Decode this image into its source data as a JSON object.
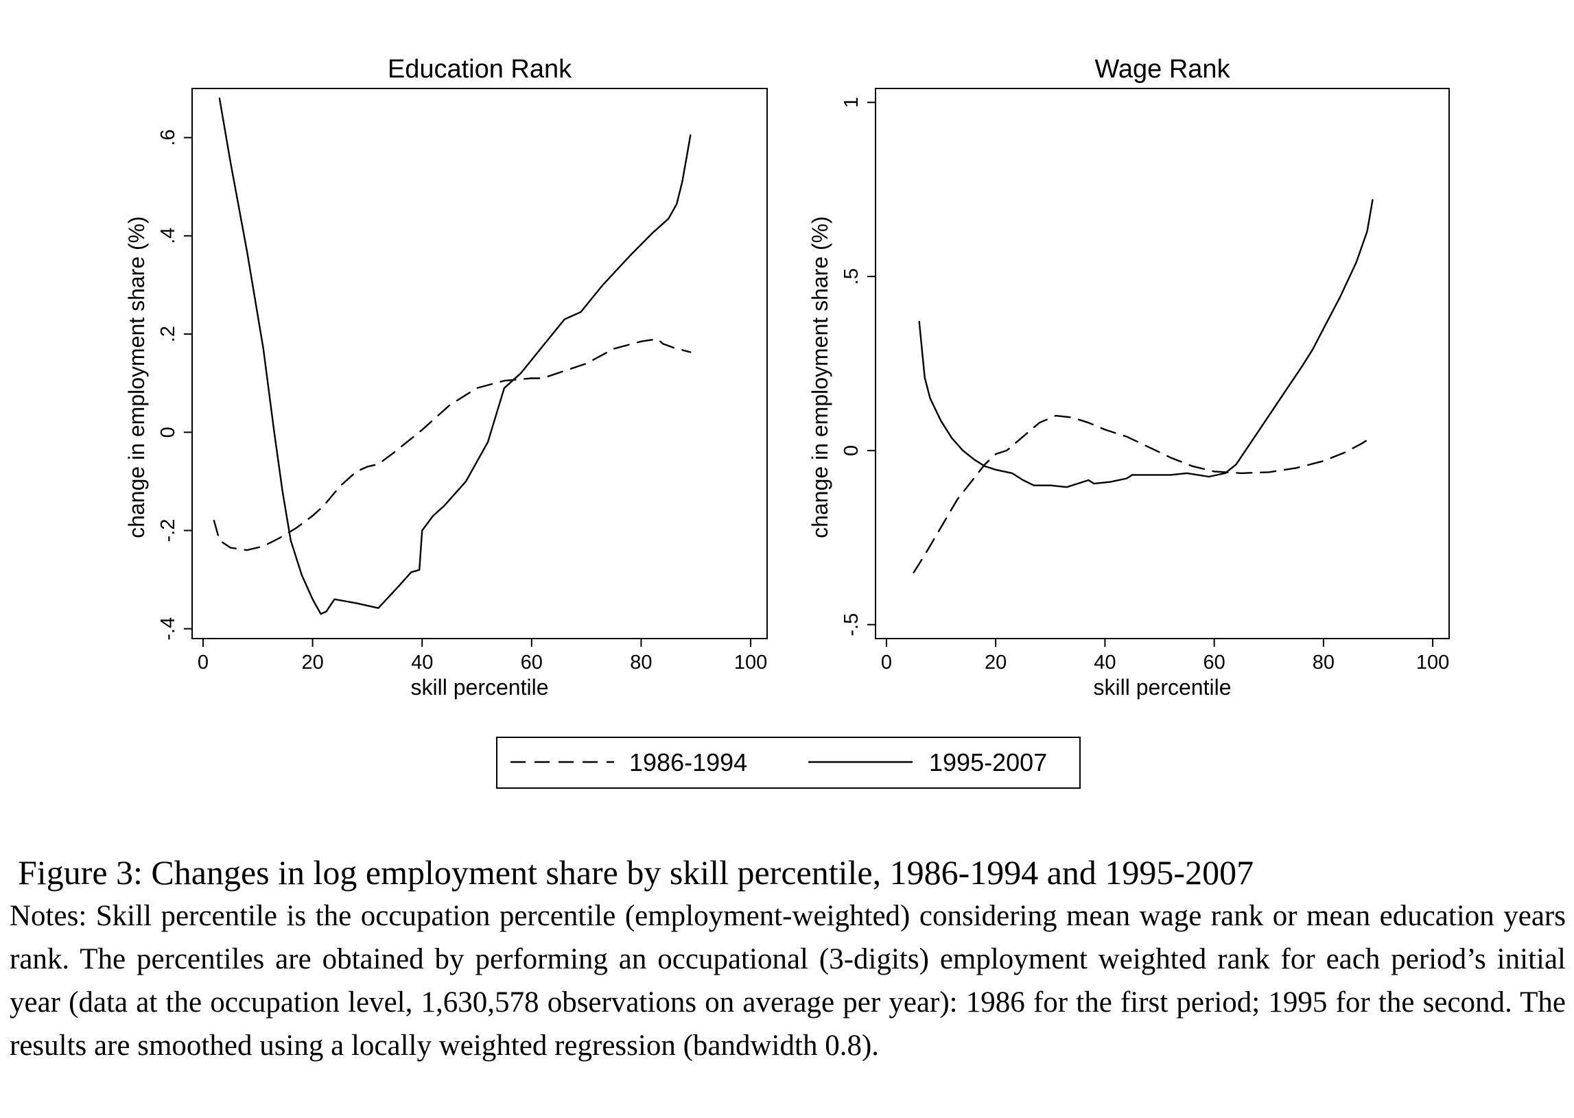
{
  "chart_data": [
    {
      "type": "line",
      "title": "Education Rank",
      "xlabel": "skill percentile",
      "ylabel": "change in employment share (%)",
      "xlim": [
        -2,
        103
      ],
      "ylim": [
        -0.42,
        0.7
      ],
      "xticks": [
        0,
        20,
        40,
        60,
        80,
        100
      ],
      "xtick_labels": [
        "0",
        "20",
        "40",
        "60",
        "80",
        "100"
      ],
      "yticks": [
        -0.4,
        -0.2,
        0,
        0.2,
        0.4,
        0.6
      ],
      "ytick_labels": [
        "-.4",
        "-.2",
        "0",
        ".2",
        ".4",
        ".6"
      ],
      "grid": false,
      "series": [
        {
          "name": "1986-1994",
          "dash": "dashed",
          "points": [
            [
              2,
              -0.18
            ],
            [
              3,
              -0.22
            ],
            [
              5,
              -0.235
            ],
            [
              8,
              -0.24
            ],
            [
              11,
              -0.232
            ],
            [
              14,
              -0.215
            ],
            [
              17,
              -0.195
            ],
            [
              20,
              -0.17
            ],
            [
              22,
              -0.15
            ],
            [
              25,
              -0.11
            ],
            [
              28,
              -0.08
            ],
            [
              30,
              -0.07
            ],
            [
              32,
              -0.065
            ],
            [
              35,
              -0.04
            ],
            [
              40,
              0.005
            ],
            [
              45,
              0.055
            ],
            [
              50,
              0.09
            ],
            [
              55,
              0.105
            ],
            [
              60,
              0.11
            ],
            [
              62,
              0.11
            ],
            [
              66,
              0.125
            ],
            [
              70,
              0.14
            ],
            [
              75,
              0.17
            ],
            [
              80,
              0.185
            ],
            [
              83,
              0.19
            ],
            [
              84,
              0.18
            ],
            [
              86,
              0.172
            ],
            [
              89,
              0.163
            ]
          ]
        },
        {
          "name": "1995-2007",
          "dash": "solid",
          "points": [
            [
              3,
              0.68
            ],
            [
              5,
              0.55
            ],
            [
              8,
              0.37
            ],
            [
              11,
              0.17
            ],
            [
              13,
              0.0
            ],
            [
              14.5,
              -0.12
            ],
            [
              16,
              -0.22
            ],
            [
              18,
              -0.29
            ],
            [
              20,
              -0.34
            ],
            [
              21.5,
              -0.37
            ],
            [
              22.5,
              -0.365
            ],
            [
              24,
              -0.34
            ],
            [
              28,
              -0.348
            ],
            [
              32,
              -0.358
            ],
            [
              36,
              -0.31
            ],
            [
              38,
              -0.285
            ],
            [
              39.5,
              -0.28
            ],
            [
              40,
              -0.2
            ],
            [
              42,
              -0.17
            ],
            [
              44,
              -0.15
            ],
            [
              48,
              -0.1
            ],
            [
              52,
              -0.02
            ],
            [
              55,
              0.09
            ],
            [
              58,
              0.12
            ],
            [
              62,
              0.175
            ],
            [
              66,
              0.23
            ],
            [
              69,
              0.245
            ],
            [
              73,
              0.3
            ],
            [
              78,
              0.36
            ],
            [
              82,
              0.405
            ],
            [
              85,
              0.435
            ],
            [
              86.5,
              0.465
            ],
            [
              87.5,
              0.51
            ],
            [
              88.3,
              0.56
            ],
            [
              89,
              0.605
            ]
          ]
        }
      ]
    },
    {
      "type": "line",
      "title": "Wage Rank",
      "xlabel": "skill percentile",
      "ylabel": "change in employment share (%)",
      "xlim": [
        -2,
        103
      ],
      "ylim": [
        -0.54,
        1.04
      ],
      "xticks": [
        0,
        20,
        40,
        60,
        80,
        100
      ],
      "xtick_labels": [
        "0",
        "20",
        "40",
        "60",
        "80",
        "100"
      ],
      "yticks": [
        -0.5,
        0,
        0.5,
        1
      ],
      "ytick_labels": [
        "-.5",
        "0",
        ".5",
        "1"
      ],
      "grid": false,
      "series": [
        {
          "name": "1986-1994",
          "dash": "dashed",
          "points": [
            [
              5,
              -0.35
            ],
            [
              7,
              -0.3
            ],
            [
              10,
              -0.22
            ],
            [
              13,
              -0.14
            ],
            [
              16,
              -0.08
            ],
            [
              18,
              -0.04
            ],
            [
              20,
              -0.01
            ],
            [
              22,
              0.0
            ],
            [
              25,
              0.04
            ],
            [
              28,
              0.08
            ],
            [
              31,
              0.1
            ],
            [
              34,
              0.095
            ],
            [
              37,
              0.08
            ],
            [
              40,
              0.06
            ],
            [
              44,
              0.04
            ],
            [
              48,
              0.01
            ],
            [
              52,
              -0.02
            ],
            [
              56,
              -0.045
            ],
            [
              60,
              -0.06
            ],
            [
              65,
              -0.065
            ],
            [
              70,
              -0.062
            ],
            [
              75,
              -0.05
            ],
            [
              80,
              -0.03
            ],
            [
              84,
              -0.005
            ],
            [
              87,
              0.02
            ],
            [
              89,
              0.04
            ]
          ]
        },
        {
          "name": "1995-2007",
          "dash": "solid",
          "points": [
            [
              6,
              0.37
            ],
            [
              7,
              0.21
            ],
            [
              8,
              0.15
            ],
            [
              10,
              0.085
            ],
            [
              12,
              0.035
            ],
            [
              14,
              0.0
            ],
            [
              16,
              -0.025
            ],
            [
              18,
              -0.045
            ],
            [
              20,
              -0.055
            ],
            [
              23,
              -0.065
            ],
            [
              25,
              -0.085
            ],
            [
              27,
              -0.1
            ],
            [
              30,
              -0.1
            ],
            [
              33,
              -0.105
            ],
            [
              35,
              -0.095
            ],
            [
              37,
              -0.085
            ],
            [
              38,
              -0.095
            ],
            [
              41,
              -0.09
            ],
            [
              44,
              -0.08
            ],
            [
              45,
              -0.07
            ],
            [
              48,
              -0.07
            ],
            [
              52,
              -0.07
            ],
            [
              55,
              -0.065
            ],
            [
              57,
              -0.07
            ],
            [
              59,
              -0.075
            ],
            [
              62,
              -0.065
            ],
            [
              64,
              -0.04
            ],
            [
              67,
              0.03
            ],
            [
              70,
              0.1
            ],
            [
              73,
              0.17
            ],
            [
              76,
              0.24
            ],
            [
              78,
              0.29
            ],
            [
              80,
              0.35
            ],
            [
              83,
              0.44
            ],
            [
              86,
              0.54
            ],
            [
              88,
              0.63
            ],
            [
              89,
              0.72
            ]
          ]
        }
      ]
    }
  ],
  "legend": {
    "placement": "bottom",
    "items": [
      "1986-1994",
      "1995-2007"
    ]
  },
  "caption": {
    "title": "Figure 3: Changes in log employment share by skill percentile, 1986-1994 and 1995-2007",
    "notes": "Notes: Skill percentile is the occupation percentile (employment-weighted) considering mean wage rank or mean education years rank. The percentiles are obtained by performing an occupational (3-digits) employment weighted rank for each period’s initial year (data at the occupation level, 1,630,578 observations on average per year): 1986 for the first period; 1995 for the second. The results are smoothed using a locally weighted regression (bandwidth 0.8)."
  }
}
